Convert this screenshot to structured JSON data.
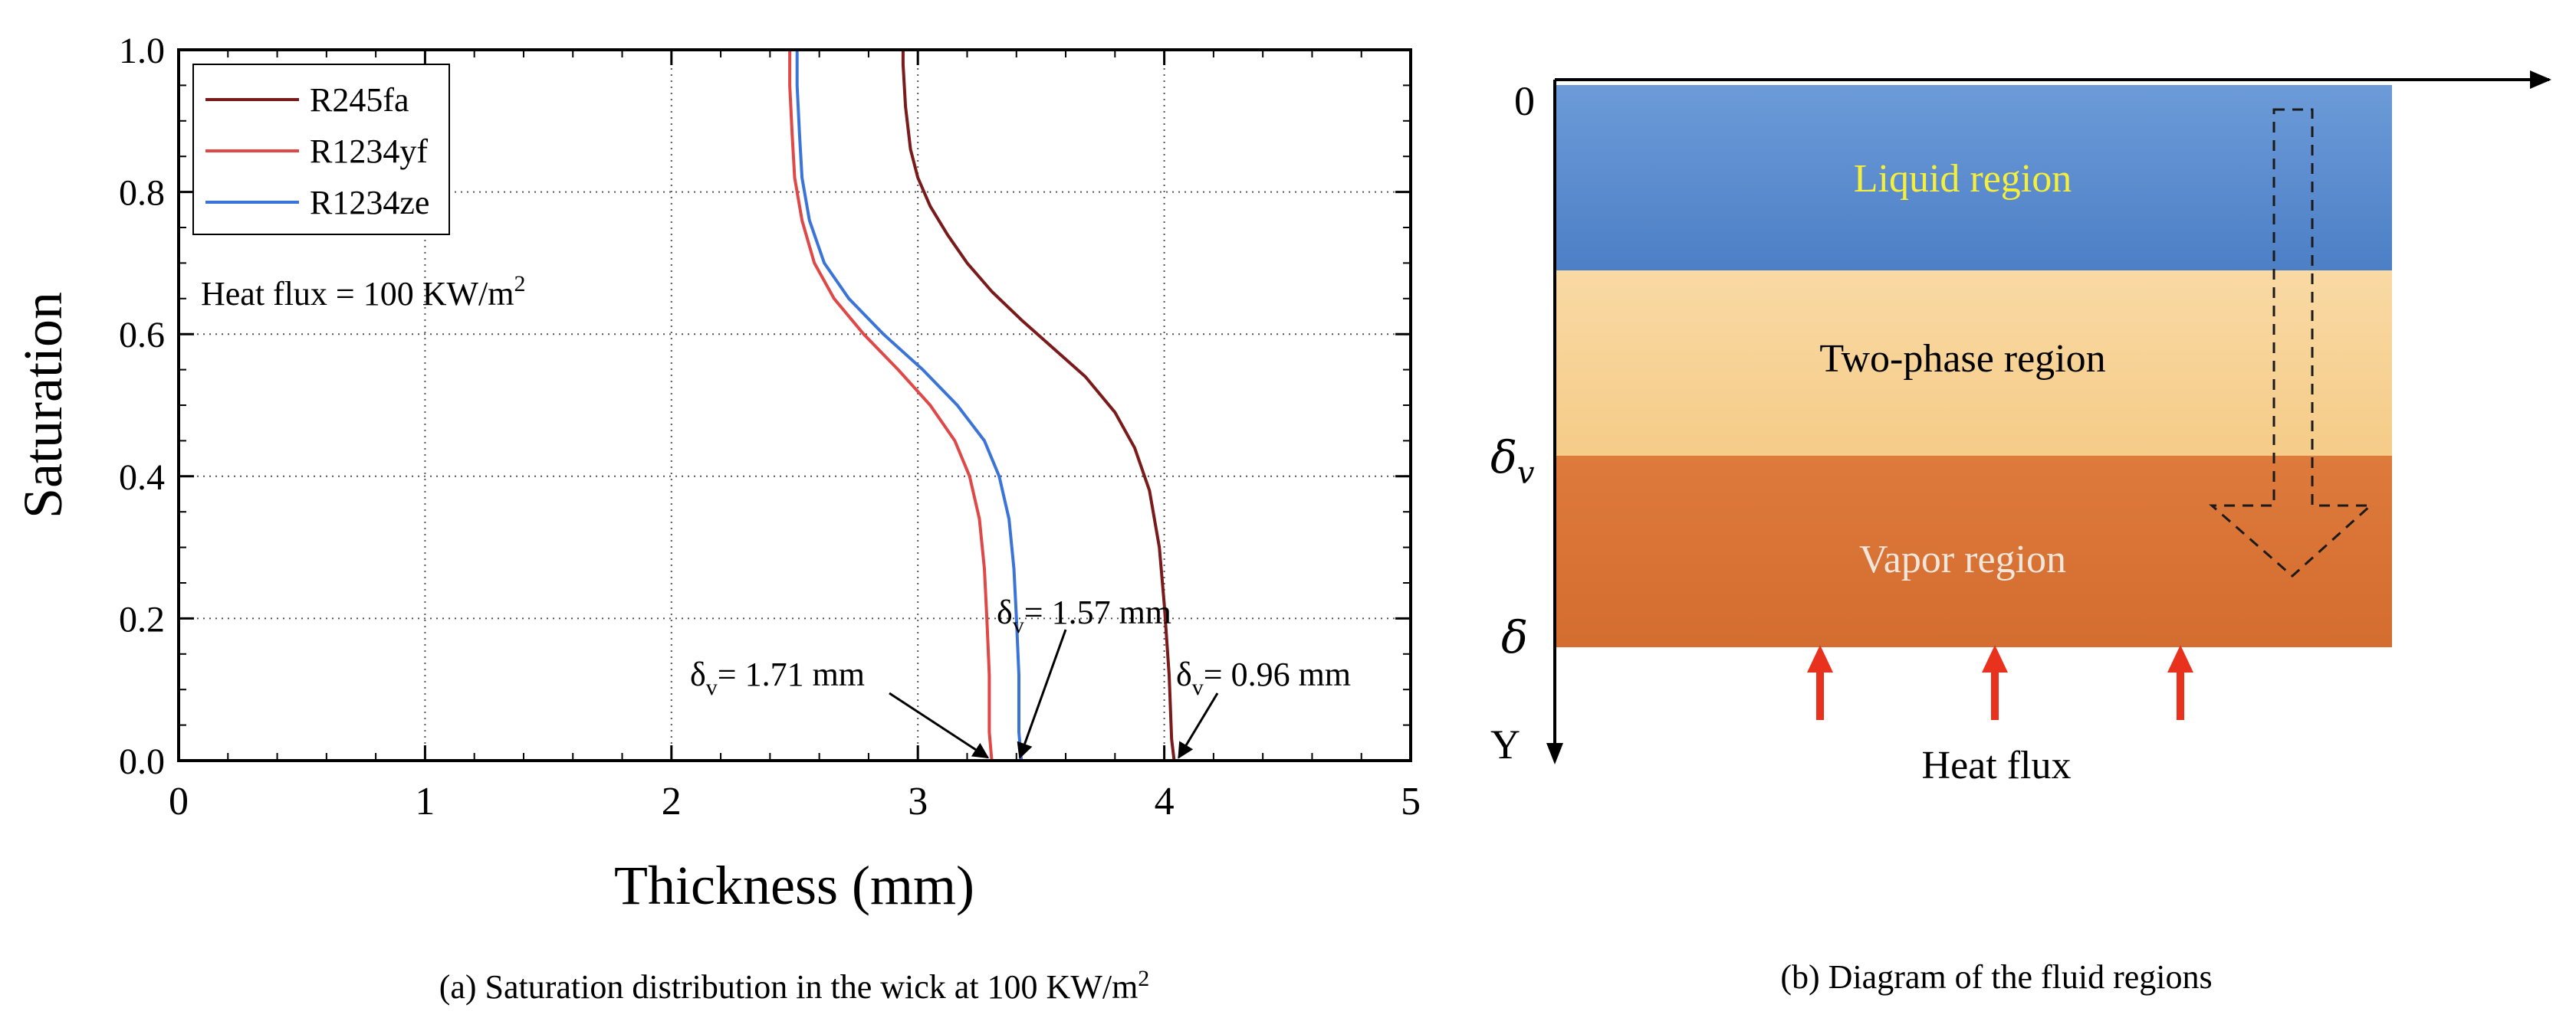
{
  "chart_data": [
    {
      "type": "line",
      "caption_main": "(a) Saturation distribution in the wick at 100 KW/m",
      "caption_sup": "2",
      "xlabel": "Thickness (mm)",
      "ylabel": "Saturation",
      "xlim": [
        0,
        5
      ],
      "ylim": [
        0,
        1
      ],
      "xticks": [
        "0",
        "1",
        "2",
        "3",
        "4",
        "5"
      ],
      "yticks": [
        "0.0",
        "0.2",
        "0.4",
        "0.6",
        "0.8",
        "1.0"
      ],
      "grid": true,
      "legend_position": "top-left",
      "annotation_heat_main": "Heat flux = 100 KW/m",
      "annotation_heat_sup": "2",
      "series": [
        {
          "name": "R245fa",
          "color": "#7a1a1a",
          "points": [
            [
              2.94,
              1.0
            ],
            [
              2.94,
              0.98
            ],
            [
              2.95,
              0.92
            ],
            [
              2.97,
              0.86
            ],
            [
              3.0,
              0.82
            ],
            [
              3.05,
              0.78
            ],
            [
              3.12,
              0.74
            ],
            [
              3.2,
              0.7
            ],
            [
              3.3,
              0.66
            ],
            [
              3.42,
              0.62
            ],
            [
              3.55,
              0.58
            ],
            [
              3.68,
              0.54
            ],
            [
              3.8,
              0.49
            ],
            [
              3.88,
              0.44
            ],
            [
              3.94,
              0.38
            ],
            [
              3.98,
              0.3
            ],
            [
              4.0,
              0.22
            ],
            [
              4.02,
              0.12
            ],
            [
              4.03,
              0.03
            ],
            [
              4.04,
              0.0
            ],
            [
              5.0,
              0.0
            ]
          ]
        },
        {
          "name": "R1234yf",
          "color": "#e04848",
          "points": [
            [
              2.48,
              1.0
            ],
            [
              2.48,
              0.95
            ],
            [
              2.49,
              0.88
            ],
            [
              2.5,
              0.82
            ],
            [
              2.53,
              0.76
            ],
            [
              2.58,
              0.7
            ],
            [
              2.66,
              0.65
            ],
            [
              2.78,
              0.6
            ],
            [
              2.92,
              0.55
            ],
            [
              3.05,
              0.5
            ],
            [
              3.15,
              0.45
            ],
            [
              3.21,
              0.4
            ],
            [
              3.25,
              0.34
            ],
            [
              3.27,
              0.27
            ],
            [
              3.28,
              0.2
            ],
            [
              3.29,
              0.12
            ],
            [
              3.29,
              0.04
            ],
            [
              3.3,
              0.0
            ],
            [
              5.0,
              0.0
            ]
          ]
        },
        {
          "name": "R1234ze",
          "color": "#3b74d8",
          "points": [
            [
              2.51,
              1.0
            ],
            [
              2.51,
              0.95
            ],
            [
              2.52,
              0.88
            ],
            [
              2.53,
              0.82
            ],
            [
              2.56,
              0.76
            ],
            [
              2.62,
              0.7
            ],
            [
              2.72,
              0.65
            ],
            [
              2.86,
              0.6
            ],
            [
              3.02,
              0.55
            ],
            [
              3.16,
              0.5
            ],
            [
              3.27,
              0.45
            ],
            [
              3.33,
              0.4
            ],
            [
              3.37,
              0.34
            ],
            [
              3.39,
              0.27
            ],
            [
              3.4,
              0.2
            ],
            [
              3.41,
              0.12
            ],
            [
              3.41,
              0.04
            ],
            [
              3.42,
              0.0
            ],
            [
              5.0,
              0.0
            ]
          ]
        }
      ],
      "annotations": [
        {
          "label": "1.71 mm",
          "sub": "v",
          "arrow_to": [
            3.29,
            0.0
          ]
        },
        {
          "label": "1.57 mm",
          "sub": "v",
          "arrow_to": [
            3.42,
            0.0
          ]
        },
        {
          "label": "0.96 mm",
          "sub": "v",
          "arrow_to": [
            4.04,
            0.0
          ]
        }
      ]
    },
    {
      "type": "diagram",
      "caption": "(b) Diagram of the fluid regions",
      "origin_label": "0",
      "axis_label": "Y",
      "delta_label": "δ",
      "delta_v_sub": "v",
      "heat_flux_label": "Heat flux",
      "regions": [
        {
          "label": "Liquid region",
          "color_top": "#6c9bd8",
          "color_bottom": "#4d7fc6",
          "text_color": "#f4ef3c"
        },
        {
          "label": "Two-phase region",
          "color_top": "#f9d9a4",
          "color_bottom": "#f5cc88",
          "text_color": "#000000"
        },
        {
          "label": "Vapor region",
          "color_top": "#dd7a3c",
          "color_bottom": "#d46d2f",
          "text_color": "#f1e6dc"
        }
      ],
      "arrow_color": "#e8321e"
    }
  ]
}
